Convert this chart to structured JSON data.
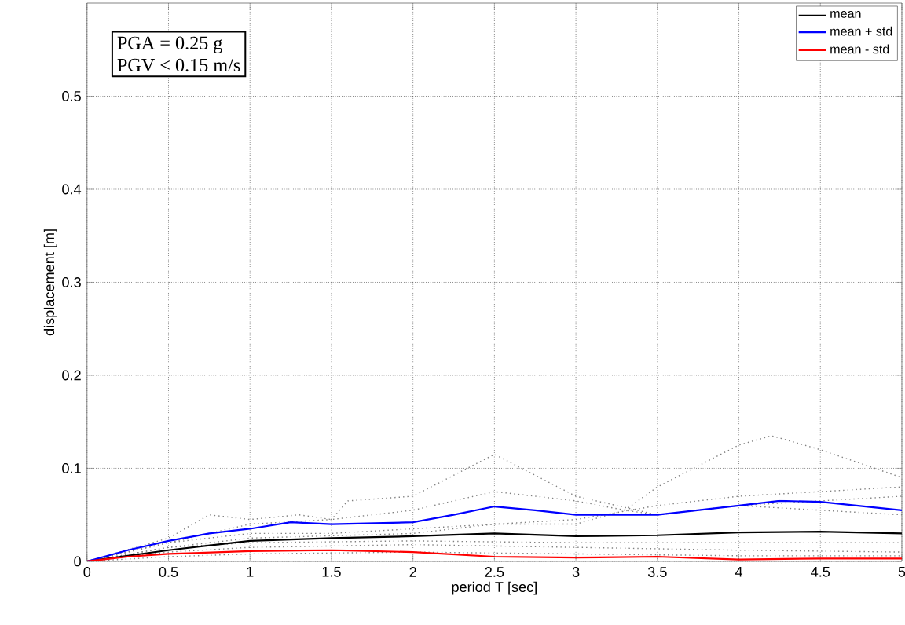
{
  "chart_data": {
    "type": "line",
    "xlabel": "period T [sec]",
    "ylabel": "displacement [m]",
    "annotations": [
      "PGA = 0.25 g",
      "PGV < 0.15 m/s"
    ],
    "xlim": [
      0,
      5
    ],
    "ylim": [
      0,
      0.6
    ],
    "xticks": [
      0,
      0.5,
      1,
      1.5,
      2,
      2.5,
      3,
      3.5,
      4,
      4.5,
      5
    ],
    "yticks": [
      0,
      0.1,
      0.2,
      0.3,
      0.4,
      0.5
    ],
    "grid": true,
    "legend": "top right",
    "marker": "none",
    "series": [
      {
        "color": "#808080",
        "line_style": "dotted",
        "x": [
          0,
          0.5,
          1,
          1.5,
          1.6,
          2,
          2.5,
          3,
          3.5,
          4,
          5
        ],
        "values": [
          0,
          0.02,
          0.04,
          0.045,
          0.065,
          0.07,
          0.115,
          0.07,
          0.05,
          0.06,
          0.05
        ]
      },
      {
        "color": "#808080",
        "line_style": "dotted",
        "x": [
          0,
          0.5,
          1,
          1.5,
          2,
          2.5,
          3,
          3.3,
          3.5,
          4,
          4.2,
          4.5,
          5
        ],
        "values": [
          0,
          0.02,
          0.03,
          0.03,
          0.035,
          0.04,
          0.04,
          0.055,
          0.08,
          0.125,
          0.135,
          0.12,
          0.09
        ]
      },
      {
        "color": "#808080",
        "line_style": "dotted",
        "x": [
          0,
          0.5,
          0.75,
          1,
          1.3,
          1.5,
          2,
          2.5,
          3,
          3.3,
          3.5,
          4,
          4.5,
          5
        ],
        "values": [
          0,
          0.025,
          0.05,
          0.045,
          0.05,
          0.045,
          0.055,
          0.075,
          0.065,
          0.055,
          0.05,
          0.06,
          0.065,
          0.07
        ]
      },
      {
        "color": "#808080",
        "line_style": "dotted",
        "x": [
          0,
          0.5,
          1,
          2,
          2.5,
          3,
          3.5,
          4,
          4.5,
          5
        ],
        "values": [
          0,
          0.015,
          0.025,
          0.03,
          0.04,
          0.045,
          0.06,
          0.07,
          0.075,
          0.08
        ]
      },
      {
        "color": "#808080",
        "line_style": "dotted",
        "x": [
          0,
          0.5,
          1,
          2,
          3,
          4,
          5
        ],
        "values": [
          0,
          0.01,
          0.015,
          0.018,
          0.015,
          0.012,
          0.01
        ]
      },
      {
        "color": "#808080",
        "line_style": "dotted",
        "x": [
          0,
          0.5,
          1,
          2,
          3,
          4,
          5
        ],
        "values": [
          0,
          0.015,
          0.02,
          0.022,
          0.02,
          0.02,
          0.02
        ]
      },
      {
        "color": "#808080",
        "line_style": "dotted",
        "x": [
          0,
          0.5,
          1,
          2,
          3,
          4,
          5
        ],
        "values": [
          0,
          0.005,
          0.008,
          0.01,
          0.008,
          0.006,
          0.006
        ]
      },
      {
        "name": "mean",
        "color": "#000000",
        "line_style": "solid",
        "x": [
          0,
          0.5,
          1,
          1.5,
          2,
          2.5,
          3,
          3.5,
          4,
          4.5,
          5
        ],
        "values": [
          0,
          0.012,
          0.022,
          0.025,
          0.027,
          0.03,
          0.027,
          0.028,
          0.031,
          0.032,
          0.03
        ]
      },
      {
        "name": "mean + std",
        "color": "#0000ff",
        "line_style": "solid",
        "x": [
          0,
          0.25,
          0.5,
          0.75,
          1,
          1.25,
          1.5,
          2,
          2.25,
          2.5,
          2.75,
          3,
          3.5,
          4,
          4.25,
          4.5,
          5
        ],
        "values": [
          0,
          0.012,
          0.022,
          0.03,
          0.035,
          0.042,
          0.04,
          0.042,
          0.05,
          0.059,
          0.055,
          0.05,
          0.05,
          0.06,
          0.065,
          0.064,
          0.055
        ]
      },
      {
        "name": "mean - std",
        "color": "#ff0000",
        "line_style": "solid",
        "x": [
          0,
          0.25,
          0.5,
          1,
          1.5,
          2,
          2.5,
          3,
          3.5,
          4,
          4.5,
          5
        ],
        "values": [
          0,
          0.005,
          0.008,
          0.011,
          0.012,
          0.01,
          0.005,
          0.004,
          0.005,
          0.002,
          0.003,
          0.003
        ]
      }
    ]
  }
}
